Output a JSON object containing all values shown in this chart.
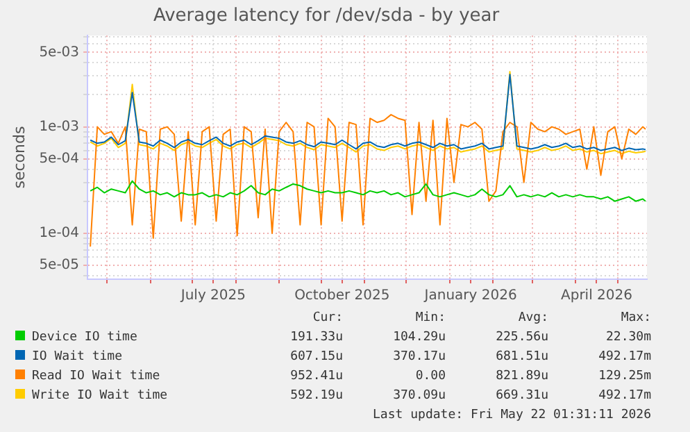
{
  "chart_data": {
    "type": "line",
    "title": "Average latency for /dev/sda - by year",
    "ylabel": "seconds",
    "log": "y",
    "grid": true,
    "legend": "bottom",
    "marker": "none",
    "line_style": "solid",
    "xlim": [
      "2025-04-17",
      "2026-05-22"
    ],
    "xticks": [
      {
        "value": "2025-05-01",
        "label": null
      },
      {
        "value": "2025-06-01",
        "label": null
      },
      {
        "value": "2025-07-01",
        "label": null
      },
      {
        "value": "2025-07-16",
        "label": "July 2025"
      },
      {
        "value": "2025-08-01",
        "label": null
      },
      {
        "value": "2025-09-01",
        "label": null
      },
      {
        "value": "2025-10-01",
        "label": null
      },
      {
        "value": "2025-10-16",
        "label": "October 2025"
      },
      {
        "value": "2025-11-01",
        "label": null
      },
      {
        "value": "2025-12-01",
        "label": null
      },
      {
        "value": "2026-01-01",
        "label": null
      },
      {
        "value": "2026-01-16",
        "label": "January 2026"
      },
      {
        "value": "2026-02-01",
        "label": null
      },
      {
        "value": "2026-03-01",
        "label": null
      },
      {
        "value": "2026-04-01",
        "label": null
      },
      {
        "value": "2026-04-16",
        "label": "April 2026"
      },
      {
        "value": "2026-05-01",
        "label": null
      }
    ],
    "ylim": [
      3.7e-05,
      0.0072
    ],
    "yticks": [
      {
        "value": 4e-05,
        "label": null
      },
      {
        "value": 5e-05,
        "label": "5e-05"
      },
      {
        "value": 6e-05,
        "label": null
      },
      {
        "value": 7e-05,
        "label": null
      },
      {
        "value": 8e-05,
        "label": null
      },
      {
        "value": 9e-05,
        "label": null
      },
      {
        "value": 0.0001,
        "label": "1e-04"
      },
      {
        "value": 0.0002,
        "label": null
      },
      {
        "value": 0.0003,
        "label": null
      },
      {
        "value": 0.0004,
        "label": null
      },
      {
        "value": 0.0005,
        "label": "5e-04"
      },
      {
        "value": 0.0006,
        "label": null
      },
      {
        "value": 0.0007,
        "label": null
      },
      {
        "value": 0.0008,
        "label": null
      },
      {
        "value": 0.0009,
        "label": null
      },
      {
        "value": 0.001,
        "label": "1e-03"
      },
      {
        "value": 0.002,
        "label": null
      },
      {
        "value": 0.003,
        "label": null
      },
      {
        "value": 0.004,
        "label": null
      },
      {
        "value": 0.005,
        "label": "5e-03"
      },
      {
        "value": 0.006,
        "label": null
      },
      {
        "value": 0.007,
        "label": null
      }
    ],
    "x": [
      "2025-04-19",
      "2025-04-24",
      "2025-04-29",
      "2025-05-04",
      "2025-05-09",
      "2025-05-14",
      "2025-05-19",
      "2025-05-24",
      "2025-05-29",
      "2025-06-03",
      "2025-06-08",
      "2025-06-13",
      "2025-06-18",
      "2025-06-23",
      "2025-06-28",
      "2025-07-03",
      "2025-07-08",
      "2025-07-13",
      "2025-07-18",
      "2025-07-23",
      "2025-07-28",
      "2025-08-02",
      "2025-08-07",
      "2025-08-12",
      "2025-08-17",
      "2025-08-22",
      "2025-08-27",
      "2025-09-01",
      "2025-09-06",
      "2025-09-11",
      "2025-09-16",
      "2025-09-21",
      "2025-09-26",
      "2025-10-01",
      "2025-10-06",
      "2025-10-11",
      "2025-10-16",
      "2025-10-21",
      "2025-10-26",
      "2025-10-31",
      "2025-11-05",
      "2025-11-10",
      "2025-11-15",
      "2025-11-20",
      "2025-11-25",
      "2025-11-30",
      "2025-12-05",
      "2025-12-10",
      "2025-12-15",
      "2025-12-20",
      "2025-12-25",
      "2025-12-30",
      "2026-01-04",
      "2026-01-09",
      "2026-01-14",
      "2026-01-19",
      "2026-01-24",
      "2026-01-29",
      "2026-02-03",
      "2026-02-08",
      "2026-02-13",
      "2026-02-18",
      "2026-02-23",
      "2026-02-28",
      "2026-03-05",
      "2026-03-10",
      "2026-03-15",
      "2026-03-20",
      "2026-03-25",
      "2026-03-30",
      "2026-04-04",
      "2026-04-09",
      "2026-04-14",
      "2026-04-19",
      "2026-04-24",
      "2026-04-29",
      "2026-05-04",
      "2026-05-09",
      "2026-05-14",
      "2026-05-19",
      "2026-05-21"
    ],
    "series": [
      {
        "name": "Device IO time",
        "color": "#00cc00",
        "values": [
          0.00025,
          0.00027,
          0.00024,
          0.00026,
          0.00025,
          0.00024,
          0.00031,
          0.00026,
          0.00024,
          0.00025,
          0.00023,
          0.00024,
          0.00022,
          0.00024,
          0.00023,
          0.00023,
          0.00024,
          0.00022,
          0.00023,
          0.00022,
          0.00024,
          0.00023,
          0.00025,
          0.00028,
          0.00024,
          0.00023,
          0.00026,
          0.00025,
          0.00027,
          0.00029,
          0.00028,
          0.00026,
          0.00025,
          0.00024,
          0.00025,
          0.00024,
          0.00024,
          0.00025,
          0.00024,
          0.00023,
          0.00025,
          0.00024,
          0.00025,
          0.00023,
          0.00024,
          0.00022,
          0.00023,
          0.00024,
          0.00029,
          0.00023,
          0.00022,
          0.00023,
          0.00024,
          0.00023,
          0.00022,
          0.00023,
          0.00026,
          0.00023,
          0.00022,
          0.00023,
          0.00028,
          0.00022,
          0.00023,
          0.00022,
          0.00023,
          0.00022,
          0.00024,
          0.00022,
          0.00023,
          0.00022,
          0.00023,
          0.00022,
          0.00022,
          0.00021,
          0.00022,
          0.0002,
          0.00021,
          0.00022,
          0.0002,
          0.00021,
          0.0002
        ]
      },
      {
        "name": "IO Wait time",
        "color": "#0066b3",
        "values": [
          0.00075,
          0.0007,
          0.00072,
          0.0008,
          0.00068,
          0.00074,
          0.0021,
          0.00072,
          0.0007,
          0.00066,
          0.00075,
          0.0007,
          0.00064,
          0.00072,
          0.00076,
          0.0007,
          0.00068,
          0.00074,
          0.0008,
          0.0007,
          0.00066,
          0.00072,
          0.00075,
          0.00068,
          0.00074,
          0.00082,
          0.0008,
          0.00078,
          0.00072,
          0.0007,
          0.00074,
          0.00068,
          0.00065,
          0.00072,
          0.0007,
          0.00068,
          0.00075,
          0.00068,
          0.00062,
          0.0007,
          0.00072,
          0.00066,
          0.00064,
          0.00068,
          0.0007,
          0.00066,
          0.0007,
          0.00072,
          0.00068,
          0.00064,
          0.0007,
          0.00066,
          0.00068,
          0.00062,
          0.00064,
          0.00066,
          0.0007,
          0.00062,
          0.00064,
          0.00066,
          0.0031,
          0.00066,
          0.00064,
          0.00062,
          0.00064,
          0.00068,
          0.00064,
          0.00066,
          0.0007,
          0.00064,
          0.00066,
          0.00062,
          0.00064,
          0.0006,
          0.00062,
          0.00064,
          0.0006,
          0.00063,
          0.00061,
          0.00062,
          0.00061
        ]
      },
      {
        "name": "Read IO Wait time",
        "color": "#ff8000",
        "values": [
          7.5e-05,
          0.001,
          0.00085,
          0.0009,
          0.0007,
          0.001,
          0.00012,
          0.00095,
          0.0009,
          9e-05,
          0.00095,
          0.001,
          0.00085,
          0.00013,
          0.0009,
          0.00012,
          0.0009,
          0.001,
          0.00013,
          0.00085,
          0.00095,
          9.5e-05,
          0.001,
          0.0009,
          0.00014,
          0.00095,
          0.0001,
          0.0009,
          0.0011,
          0.0009,
          0.00012,
          0.0011,
          0.001,
          0.00012,
          0.0012,
          0.001,
          0.00013,
          0.0011,
          0.00105,
          0.00012,
          0.0012,
          0.0011,
          0.00115,
          0.0013,
          0.0012,
          0.00115,
          0.00015,
          0.0011,
          0.0002,
          0.00115,
          0.00012,
          0.0012,
          0.0003,
          0.00105,
          0.001,
          0.0011,
          0.00095,
          0.0002,
          0.00025,
          0.0009,
          0.0011,
          0.001,
          0.0003,
          0.0011,
          0.00095,
          0.0009,
          0.001,
          0.00095,
          0.00085,
          0.0009,
          0.00095,
          0.0004,
          0.001,
          0.00035,
          0.0009,
          0.001,
          0.0005,
          0.00095,
          0.00085,
          0.001,
          0.00095
        ]
      },
      {
        "name": "Write IO Wait time",
        "color": "#ffcc00",
        "values": [
          0.00072,
          0.00066,
          0.0007,
          0.00078,
          0.00064,
          0.0007,
          0.0025,
          0.00068,
          0.00066,
          0.00062,
          0.0007,
          0.00066,
          0.0006,
          0.00068,
          0.00072,
          0.00066,
          0.00064,
          0.0007,
          0.00076,
          0.00066,
          0.00062,
          0.00068,
          0.0007,
          0.00064,
          0.0007,
          0.00078,
          0.00076,
          0.00074,
          0.00068,
          0.00066,
          0.0007,
          0.00064,
          0.00061,
          0.00068,
          0.00066,
          0.00064,
          0.0007,
          0.00064,
          0.00058,
          0.00066,
          0.00068,
          0.00062,
          0.0006,
          0.00064,
          0.00066,
          0.00062,
          0.00066,
          0.00068,
          0.00064,
          0.0006,
          0.00066,
          0.00062,
          0.00064,
          0.00058,
          0.0006,
          0.00062,
          0.00066,
          0.00058,
          0.0006,
          0.00062,
          0.0033,
          0.00062,
          0.0006,
          0.00058,
          0.0006,
          0.00064,
          0.0006,
          0.00062,
          0.00066,
          0.0006,
          0.00062,
          0.00058,
          0.0006,
          0.00056,
          0.00058,
          0.0006,
          0.00056,
          0.00059,
          0.00057,
          0.00058,
          0.00059
        ]
      }
    ],
    "annotations": [
      "Cur:",
      "Min:",
      "Avg:",
      "Max:",
      "191.33u",
      "104.29u",
      "225.56u",
      "22.30m",
      "607.15u",
      "370.17u",
      "681.51u",
      "492.17m",
      "952.41u",
      "0.00",
      "821.89u",
      "129.25m",
      "592.19u",
      "370.09u",
      "669.31u",
      "492.17m",
      "Last update: Fri May 22 01:31:11 2026"
    ]
  }
}
